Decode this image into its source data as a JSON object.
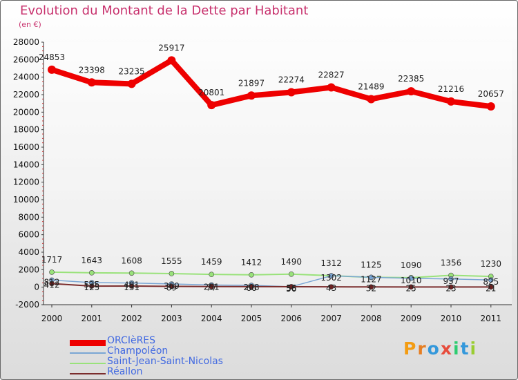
{
  "chart_data": {
    "type": "line",
    "title": "Evolution du Montant de la Dette par Habitant",
    "subtitle": "(en €)",
    "xlabel": "",
    "ylabel": "",
    "ylim": [
      -2000,
      28000
    ],
    "yticks": [
      -2000,
      0,
      2000,
      4000,
      6000,
      8000,
      10000,
      12000,
      14000,
      16000,
      18000,
      20000,
      22000,
      24000,
      26000,
      28000
    ],
    "categories": [
      "2000",
      "2001",
      "2002",
      "2003",
      "2004",
      "2005",
      "2006",
      "2007",
      "2008",
      "2009",
      "2010",
      "2011"
    ],
    "grid": false,
    "legend": "bottom-left",
    "series": [
      {
        "name": "ORCIèRES",
        "color": "#ee0000",
        "values": [
          24853,
          23398,
          23235,
          25917,
          20801,
          21897,
          22274,
          22827,
          21489,
          22385,
          21216,
          20657
        ]
      },
      {
        "name": "Champoléon",
        "color": "#7aa6d4",
        "values": [
          812,
          525,
          481,
          369,
          251,
          208,
          56,
          1302,
          1127,
          1010,
          937,
          825
        ]
      },
      {
        "name": "Saint-Jean-Saint-Nicolas",
        "color": "#99e27a",
        "values": [
          1717,
          1643,
          1608,
          1555,
          1459,
          1412,
          1490,
          1312,
          1125,
          1090,
          1356,
          1230
        ]
      },
      {
        "name": "Réallon",
        "color": "#7b2d2d",
        "values": [
          412,
          125,
          131,
          89,
          77,
          66,
          56,
          43,
          32,
          25,
          23,
          21
        ]
      }
    ]
  },
  "brand": {
    "name": "Proxiti"
  }
}
